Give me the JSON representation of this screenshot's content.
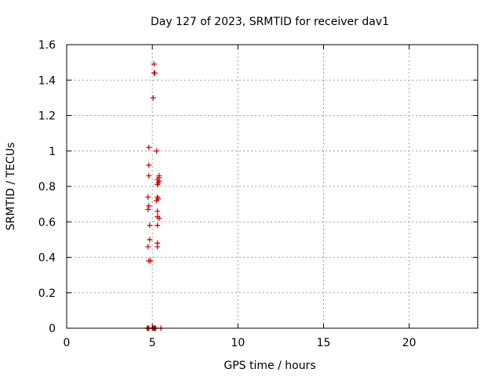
{
  "chart_data": {
    "type": "scatter",
    "title": "Day 127 of 2023, SRMTID for receiver dav1",
    "xlabel": "GPS time / hours",
    "ylabel": "SRMTID / TECUs",
    "xlim": [
      0,
      24
    ],
    "ylim": [
      0,
      1.6
    ],
    "xticks": [
      0,
      5,
      10,
      15,
      20
    ],
    "yticks": [
      0,
      0.2,
      0.4,
      0.6,
      0.8,
      1.0,
      1.2,
      1.4,
      1.6
    ],
    "xtick_labels": [
      "0",
      "5",
      "10",
      "15",
      "20"
    ],
    "ytick_labels": [
      "0",
      "0.2",
      "0.4",
      "0.6",
      "0.8",
      "1",
      "1.2",
      "1.4",
      "1.6"
    ],
    "grid": true,
    "marker": "+",
    "color": "#cc0000",
    "points": [
      {
        "x": 4.7,
        "y": 0.0
      },
      {
        "x": 4.75,
        "y": 0.0
      },
      {
        "x": 4.8,
        "y": 0.0
      },
      {
        "x": 5.0,
        "y": 0.0
      },
      {
        "x": 5.05,
        "y": 0.0
      },
      {
        "x": 5.1,
        "y": 0.0
      },
      {
        "x": 5.15,
        "y": 0.0
      },
      {
        "x": 5.2,
        "y": 0.0
      },
      {
        "x": 5.5,
        "y": 0.0
      },
      {
        "x": 4.8,
        "y": 0.38
      },
      {
        "x": 4.9,
        "y": 0.38
      },
      {
        "x": 4.75,
        "y": 0.46
      },
      {
        "x": 4.85,
        "y": 0.5
      },
      {
        "x": 5.3,
        "y": 0.46
      },
      {
        "x": 5.3,
        "y": 0.48
      },
      {
        "x": 4.85,
        "y": 0.58
      },
      {
        "x": 5.3,
        "y": 0.58
      },
      {
        "x": 5.4,
        "y": 0.62
      },
      {
        "x": 5.3,
        "y": 0.63
      },
      {
        "x": 5.3,
        "y": 0.66
      },
      {
        "x": 4.75,
        "y": 0.67
      },
      {
        "x": 4.8,
        "y": 0.69
      },
      {
        "x": 5.25,
        "y": 0.72
      },
      {
        "x": 5.35,
        "y": 0.73
      },
      {
        "x": 5.3,
        "y": 0.74
      },
      {
        "x": 4.75,
        "y": 0.74
      },
      {
        "x": 5.3,
        "y": 0.81
      },
      {
        "x": 5.35,
        "y": 0.82
      },
      {
        "x": 5.4,
        "y": 0.83
      },
      {
        "x": 5.3,
        "y": 0.84
      },
      {
        "x": 5.4,
        "y": 0.85
      },
      {
        "x": 5.4,
        "y": 0.86
      },
      {
        "x": 4.8,
        "y": 0.86
      },
      {
        "x": 4.8,
        "y": 0.92
      },
      {
        "x": 5.25,
        "y": 1.0
      },
      {
        "x": 4.8,
        "y": 1.02
      },
      {
        "x": 5.05,
        "y": 1.3
      },
      {
        "x": 5.1,
        "y": 1.44
      },
      {
        "x": 5.15,
        "y": 1.44
      },
      {
        "x": 5.1,
        "y": 1.49
      }
    ]
  }
}
